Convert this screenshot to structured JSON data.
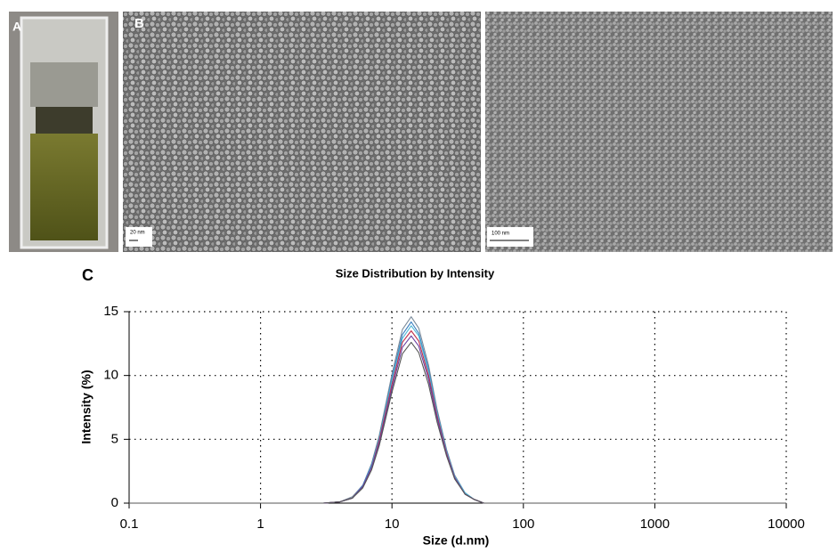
{
  "panels": {
    "a": "A",
    "b": "B",
    "c": "C",
    "scale_left": "20 nm",
    "scale_right": "100 nm"
  },
  "chart_data": {
    "type": "line",
    "title": "Size Distribution by Intensity",
    "x_label": "Size (d.nm)",
    "y_label": "Intensity (%)",
    "log_x": true,
    "grid": true,
    "xlim": [
      0.1,
      10000
    ],
    "xticks": [
      0.1,
      1,
      10,
      100,
      1000,
      10000
    ],
    "ylim": [
      0,
      15
    ],
    "yticks": [
      0,
      5,
      10,
      15
    ],
    "x": [
      0.1,
      3,
      4,
      5,
      6,
      7,
      8,
      10,
      12,
      14,
      16,
      19,
      22,
      26,
      30,
      36,
      42,
      50,
      10000
    ],
    "series": [
      {
        "color": "#7a8a9a",
        "values": [
          0,
          0,
          0.1,
          0.5,
          1.4,
          3.1,
          5.3,
          10.1,
          13.6,
          14.6,
          13.7,
          10.8,
          7.4,
          4.2,
          2.2,
          0.8,
          0.3,
          0,
          0
        ]
      },
      {
        "color": "#3a7fc0",
        "values": [
          0,
          0,
          0.1,
          0.4,
          1.4,
          3.0,
          5.1,
          9.8,
          13.2,
          14.2,
          13.3,
          10.5,
          7.2,
          4.1,
          2.1,
          0.8,
          0.3,
          0,
          0
        ]
      },
      {
        "color": "#4cb8d8",
        "values": [
          0,
          0,
          0.1,
          0.4,
          1.3,
          2.9,
          5.0,
          9.6,
          12.9,
          13.9,
          13.1,
          10.3,
          7.1,
          4.0,
          2.1,
          0.8,
          0.3,
          0,
          0
        ]
      },
      {
        "color": "#c0304a",
        "values": [
          0,
          0,
          0.1,
          0.4,
          1.3,
          2.8,
          4.9,
          9.3,
          12.6,
          13.5,
          12.7,
          10.0,
          6.9,
          3.9,
          2.0,
          0.7,
          0.3,
          0,
          0
        ]
      },
      {
        "color": "#6a3fa0",
        "values": [
          0,
          0,
          0.1,
          0.4,
          1.3,
          2.8,
          4.7,
          9.0,
          12.2,
          13.1,
          12.3,
          9.7,
          6.7,
          3.8,
          2.0,
          0.7,
          0.3,
          0,
          0
        ]
      },
      {
        "color": "#555555",
        "values": [
          0,
          0,
          0.1,
          0.4,
          1.2,
          2.6,
          4.5,
          8.7,
          11.7,
          12.6,
          11.8,
          9.3,
          6.4,
          3.7,
          1.9,
          0.7,
          0.3,
          0,
          0
        ]
      }
    ]
  }
}
